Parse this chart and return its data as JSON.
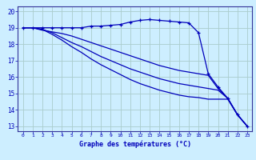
{
  "title": "Graphe des températures (°C)",
  "bg_color": "#cdeeff",
  "grid_color": "#aacccc",
  "line_color": "#0000bb",
  "axis_color": "#333399",
  "xlim": [
    -0.5,
    23.5
  ],
  "ylim": [
    12.7,
    20.3
  ],
  "xticks": [
    0,
    1,
    2,
    3,
    4,
    5,
    6,
    7,
    8,
    9,
    10,
    11,
    12,
    13,
    14,
    15,
    16,
    17,
    18,
    19,
    20,
    21,
    22,
    23
  ],
  "yticks": [
    13,
    14,
    15,
    16,
    17,
    18,
    19,
    20
  ],
  "series": [
    {
      "x": [
        0,
        1,
        2,
        3,
        4,
        5,
        6,
        7,
        8,
        9,
        10,
        11,
        12,
        13,
        14,
        15,
        16,
        17,
        18,
        19,
        20,
        21,
        22,
        23
      ],
      "y": [
        19,
        19,
        19,
        19,
        19,
        19,
        19,
        19.1,
        19.1,
        19.15,
        19.2,
        19.35,
        19.45,
        19.5,
        19.45,
        19.4,
        19.35,
        19.3,
        18.7,
        16.2,
        15.4,
        14.7,
        13.7,
        13.0
      ],
      "marker": true
    },
    {
      "x": [
        0,
        1,
        2,
        3,
        4,
        5,
        6,
        7,
        8,
        9,
        10,
        11,
        12,
        13,
        14,
        15,
        16,
        17,
        18,
        19,
        20,
        21,
        22,
        23
      ],
      "y": [
        19,
        19,
        18.85,
        18.75,
        18.65,
        18.5,
        18.3,
        18.1,
        17.9,
        17.7,
        17.5,
        17.3,
        17.1,
        16.9,
        16.7,
        16.55,
        16.4,
        16.3,
        16.2,
        16.1,
        15.3,
        14.7,
        13.7,
        13.0
      ],
      "marker": false
    },
    {
      "x": [
        0,
        1,
        2,
        3,
        4,
        5,
        6,
        7,
        8,
        9,
        10,
        11,
        12,
        13,
        14,
        15,
        16,
        17,
        18,
        19,
        20,
        21,
        22,
        23
      ],
      "y": [
        19,
        19,
        18.9,
        18.7,
        18.4,
        18.1,
        17.85,
        17.55,
        17.25,
        17.0,
        16.75,
        16.5,
        16.3,
        16.1,
        15.9,
        15.75,
        15.6,
        15.5,
        15.4,
        15.3,
        15.2,
        14.7,
        13.7,
        13.0
      ],
      "marker": false
    },
    {
      "x": [
        0,
        1,
        2,
        3,
        4,
        5,
        6,
        7,
        8,
        9,
        10,
        11,
        12,
        13,
        14,
        15,
        16,
        17,
        18,
        19,
        20,
        21,
        22,
        23
      ],
      "y": [
        19,
        19,
        18.9,
        18.6,
        18.25,
        17.85,
        17.5,
        17.1,
        16.75,
        16.45,
        16.15,
        15.85,
        15.6,
        15.4,
        15.2,
        15.05,
        14.9,
        14.8,
        14.75,
        14.65,
        14.65,
        14.65,
        13.7,
        13.0
      ],
      "marker": false
    }
  ]
}
